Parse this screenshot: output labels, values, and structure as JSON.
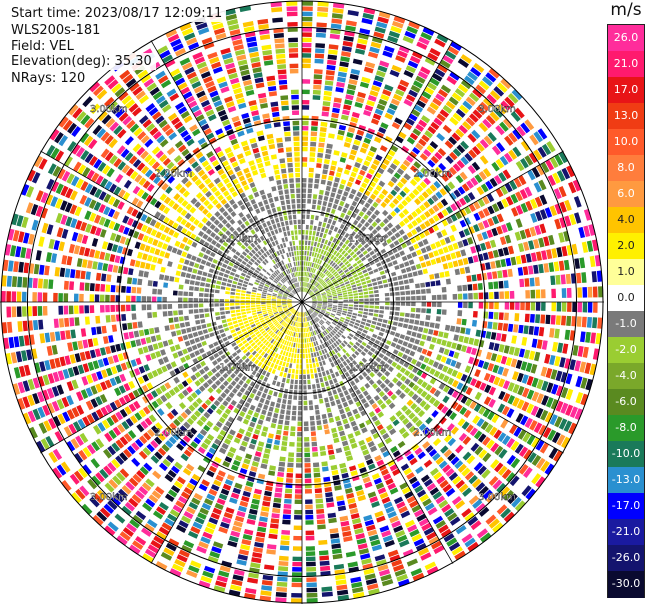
{
  "header": {
    "start_time": "Start time: 2023/08/17 12:09:11",
    "instrument": "WLS200s-181",
    "field": "Field: VEL",
    "elevation": "Elevation(deg): 35.30",
    "nrays": "NRays: 120"
  },
  "colorbar": {
    "unit": "m/s",
    "ticks": [
      "26.0",
      "21.0",
      "17.0",
      "13.0",
      "10.0",
      "8.0",
      "6.0",
      "4.0",
      "2.0",
      "1.0",
      "0.0",
      "-1.0",
      "-2.0",
      "-4.0",
      "-6.0",
      "-8.0",
      "-10.0",
      "-13.0",
      "-17.0",
      "-21.0",
      "-26.0",
      "-30.0"
    ],
    "colors": [
      "#ff2d9b",
      "#ff1a6e",
      "#e81417",
      "#f03c14",
      "#ff5a2a",
      "#ff7d3c",
      "#ff9a40",
      "#ffc400",
      "#fff000",
      "#ffff99",
      "#ffffff",
      "#7a7a7a",
      "#9acd32",
      "#7aa82a",
      "#5a8a20",
      "#2a9a2a",
      "#1a7a5a",
      "#2a90d0",
      "#0000ff",
      "#1a1aa0",
      "#14146e",
      "#0a0a30"
    ]
  },
  "chart_data": {
    "type": "heatmap",
    "projection": "polar (PPI)",
    "field": "VEL",
    "units": "m/s",
    "range_rings_km": [
      1.0,
      2.0,
      3.0
    ],
    "ring_labels": [
      "1.00km",
      "2.00km",
      "3.00km"
    ],
    "vmin": -30.0,
    "vmax": 26.0,
    "radial_lines": 12
  }
}
